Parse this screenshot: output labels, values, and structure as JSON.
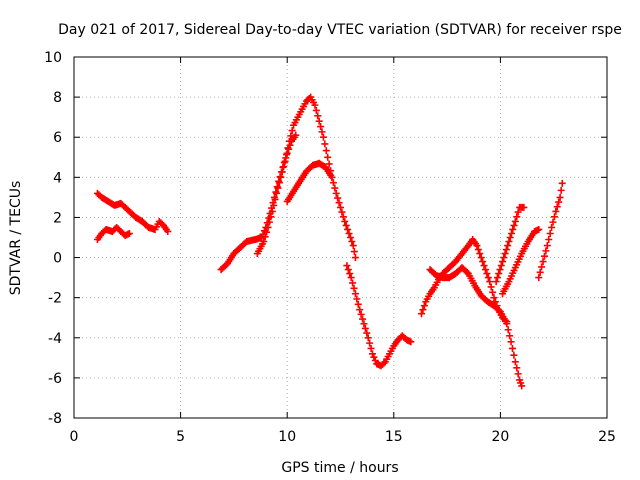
{
  "chart_data": {
    "type": "scatter",
    "title": "Day 021 of 2017, Sidereal Day-to-day VTEC variation (SDTVAR) for receiver rspe",
    "xlabel": "GPS time / hours",
    "ylabel": "SDTVAR / TECUs",
    "xlim": [
      0,
      25
    ],
    "ylim": [
      -8,
      10
    ],
    "xticks": [
      0,
      5,
      10,
      15,
      20,
      25
    ],
    "yticks": [
      -8,
      -6,
      -4,
      -2,
      0,
      2,
      4,
      6,
      8,
      10
    ],
    "grid": true,
    "legend": "none",
    "marker": "plus",
    "color": "#ff0000",
    "segments": [
      [
        [
          1.1,
          3.2
        ],
        [
          1.3,
          3.0
        ],
        [
          1.6,
          2.8
        ],
        [
          1.9,
          2.6
        ],
        [
          2.2,
          2.7
        ],
        [
          2.4,
          2.5
        ],
        [
          2.6,
          2.3
        ],
        [
          2.9,
          2.0
        ],
        [
          3.2,
          1.8
        ],
        [
          3.5,
          1.5
        ],
        [
          3.8,
          1.4
        ],
        [
          4.0,
          1.8
        ],
        [
          4.2,
          1.6
        ],
        [
          4.4,
          1.3
        ]
      ],
      [
        [
          1.1,
          0.9
        ],
        [
          1.3,
          1.2
        ],
        [
          1.5,
          1.4
        ],
        [
          1.8,
          1.3
        ],
        [
          2.0,
          1.5
        ],
        [
          2.2,
          1.3
        ],
        [
          2.4,
          1.1
        ],
        [
          2.6,
          1.2
        ]
      ],
      [
        [
          6.9,
          -0.6
        ],
        [
          7.2,
          -0.3
        ],
        [
          7.5,
          0.2
        ],
        [
          7.8,
          0.5
        ],
        [
          8.1,
          0.8
        ],
        [
          8.5,
          0.9
        ],
        [
          8.8,
          1.0
        ],
        [
          9.0,
          1.5
        ],
        [
          9.2,
          2.2
        ],
        [
          9.4,
          3.0
        ],
        [
          9.6,
          3.8
        ],
        [
          9.8,
          4.5
        ],
        [
          10.0,
          5.2
        ],
        [
          10.2,
          5.8
        ],
        [
          10.4,
          6.1
        ]
      ],
      [
        [
          8.6,
          0.2
        ],
        [
          8.9,
          0.8
        ],
        [
          9.1,
          1.5
        ],
        [
          9.3,
          2.3
        ],
        [
          9.5,
          3.2
        ],
        [
          9.7,
          4.0
        ],
        [
          9.9,
          4.8
        ],
        [
          10.1,
          5.8
        ],
        [
          10.3,
          6.6
        ],
        [
          10.5,
          7.0
        ],
        [
          10.7,
          7.4
        ],
        [
          10.9,
          7.8
        ],
        [
          11.1,
          8.0
        ],
        [
          11.3,
          7.6
        ],
        [
          11.5,
          6.8
        ],
        [
          11.7,
          6.0
        ],
        [
          11.9,
          5.0
        ],
        [
          12.1,
          4.0
        ],
        [
          12.3,
          3.2
        ],
        [
          12.5,
          2.5
        ],
        [
          12.7,
          1.8
        ],
        [
          12.9,
          1.2
        ],
        [
          13.1,
          0.6
        ],
        [
          13.2,
          0.0
        ]
      ],
      [
        [
          10.0,
          2.8
        ],
        [
          10.3,
          3.3
        ],
        [
          10.6,
          3.8
        ],
        [
          10.9,
          4.3
        ],
        [
          11.2,
          4.6
        ],
        [
          11.5,
          4.7
        ],
        [
          11.8,
          4.5
        ],
        [
          12.1,
          4.0
        ]
      ],
      [
        [
          12.8,
          -0.4
        ],
        [
          13.0,
          -1.0
        ],
        [
          13.2,
          -1.8
        ],
        [
          13.4,
          -2.6
        ],
        [
          13.6,
          -3.3
        ],
        [
          13.8,
          -4.0
        ],
        [
          14.0,
          -4.8
        ],
        [
          14.2,
          -5.3
        ],
        [
          14.4,
          -5.4
        ],
        [
          14.6,
          -5.2
        ],
        [
          14.8,
          -4.8
        ],
        [
          15.0,
          -4.4
        ],
        [
          15.2,
          -4.1
        ],
        [
          15.4,
          -3.9
        ],
        [
          15.6,
          -4.1
        ],
        [
          15.8,
          -4.2
        ]
      ],
      [
        [
          16.3,
          -2.8
        ],
        [
          16.5,
          -2.2
        ],
        [
          16.7,
          -1.8
        ],
        [
          16.9,
          -1.5
        ],
        [
          17.1,
          -1.1
        ],
        [
          17.3,
          -0.8
        ],
        [
          17.6,
          -0.5
        ],
        [
          17.9,
          -0.2
        ],
        [
          18.2,
          0.2
        ],
        [
          18.5,
          0.6
        ],
        [
          18.7,
          0.9
        ],
        [
          18.9,
          0.6
        ],
        [
          19.1,
          0.0
        ],
        [
          19.3,
          -0.6
        ],
        [
          19.5,
          -1.2
        ],
        [
          19.7,
          -2.0
        ],
        [
          19.9,
          -2.6
        ],
        [
          20.1,
          -3.0
        ],
        [
          20.3,
          -3.2
        ]
      ],
      [
        [
          16.7,
          -0.6
        ],
        [
          17.0,
          -0.9
        ],
        [
          17.3,
          -1.0
        ],
        [
          17.6,
          -1.0
        ],
        [
          17.9,
          -0.8
        ],
        [
          18.2,
          -0.5
        ],
        [
          18.5,
          -0.8
        ],
        [
          18.8,
          -1.4
        ],
        [
          19.1,
          -1.9
        ],
        [
          19.4,
          -2.2
        ],
        [
          19.7,
          -2.4
        ],
        [
          20.0,
          -2.7
        ],
        [
          20.3,
          -3.3
        ],
        [
          20.5,
          -4.2
        ],
        [
          20.7,
          -5.2
        ],
        [
          20.9,
          -6.1
        ],
        [
          21.0,
          -6.4
        ]
      ],
      [
        [
          19.8,
          -1.2
        ],
        [
          20.1,
          -0.2
        ],
        [
          20.4,
          0.8
        ],
        [
          20.7,
          1.8
        ],
        [
          20.9,
          2.5
        ],
        [
          21.1,
          2.5
        ]
      ],
      [
        [
          20.1,
          -1.8
        ],
        [
          20.4,
          -1.2
        ],
        [
          20.7,
          -0.5
        ],
        [
          21.0,
          0.2
        ],
        [
          21.3,
          0.8
        ],
        [
          21.6,
          1.3
        ],
        [
          21.8,
          1.4
        ]
      ],
      [
        [
          21.8,
          -1.0
        ],
        [
          22.0,
          -0.2
        ],
        [
          22.2,
          0.6
        ],
        [
          22.4,
          1.5
        ],
        [
          22.6,
          2.3
        ],
        [
          22.8,
          3.0
        ],
        [
          22.9,
          3.7
        ]
      ]
    ]
  }
}
